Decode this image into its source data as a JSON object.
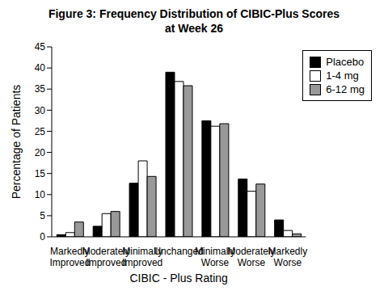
{
  "chart_data": {
    "type": "bar",
    "title": "Figure 3:  Frequency Distribution of CIBIC-Plus Scores\nat Week 26",
    "x_label": "CIBIC - Plus Rating",
    "y_label": "Percentage of Patients",
    "categories": [
      "Markedly Improved",
      "Moderately Improved",
      "Minimally Improved",
      "Unchanged",
      "Minimally Worse",
      "Moderately Worse",
      "Markedly Worse"
    ],
    "series": [
      {
        "name": "Placebo",
        "color": "#000000",
        "values": [
          0.5,
          2.5,
          12.7,
          39,
          27.5,
          13.7,
          4
        ]
      },
      {
        "name": "1-4 mg",
        "color": "#ffffff",
        "values": [
          1,
          5.5,
          18,
          36.8,
          26.2,
          10.8,
          1.5
        ]
      },
      {
        "name": "6-12 mg",
        "color": "#999999",
        "values": [
          3.5,
          6,
          14.3,
          35.8,
          26.8,
          12.5,
          0.7
        ]
      }
    ],
    "ylim": [
      0,
      45
    ],
    "yticks": [
      0,
      5,
      10,
      15,
      20,
      25,
      30,
      35,
      40,
      45
    ],
    "grid": false,
    "legend": "upper right"
  }
}
